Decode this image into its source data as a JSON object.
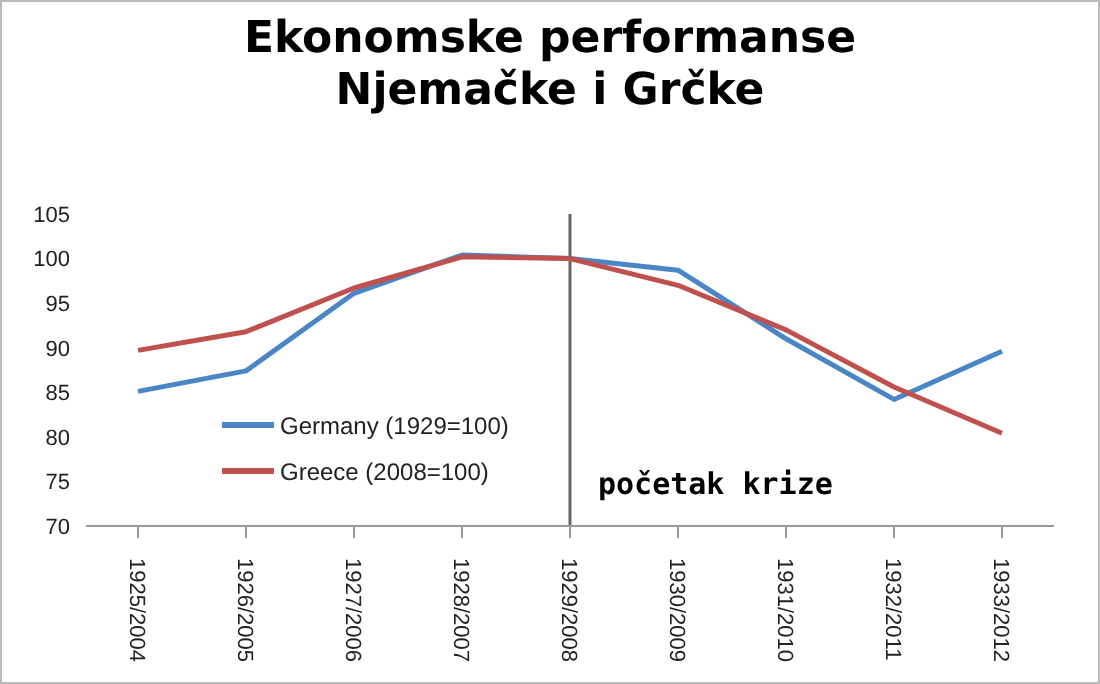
{
  "chart_data": {
    "type": "line",
    "title": "Ekonomske performanse\nNjemačke i Grčke",
    "categories": [
      "1925/2004",
      "1926/2005",
      "1927/2006",
      "1928/2007",
      "1929/2008",
      "1930/2009",
      "1931/2010",
      "1932/2011",
      "1933/2012"
    ],
    "series": [
      {
        "name": "Germany (1929=100)",
        "color": "#4a86c5",
        "values": [
          85.1,
          87.4,
          96.1,
          100.4,
          100,
          98.7,
          91,
          84.2,
          89.6
        ]
      },
      {
        "name": "Greece (2008=100)",
        "color": "#c0504d",
        "values": [
          89.7,
          91.8,
          96.7,
          100.2,
          100,
          97,
          92,
          85.6,
          80.4
        ]
      }
    ],
    "ylim": [
      70,
      105
    ],
    "yticks": [
      70,
      75,
      80,
      85,
      90,
      95,
      100,
      105
    ],
    "ref_lines": [
      {
        "axis": "x",
        "value": "1929/2008",
        "label": "početak krize",
        "color": "#666666"
      }
    ],
    "legend": "bottom left",
    "marker": "none",
    "line_style": "solid",
    "grid": false
  }
}
